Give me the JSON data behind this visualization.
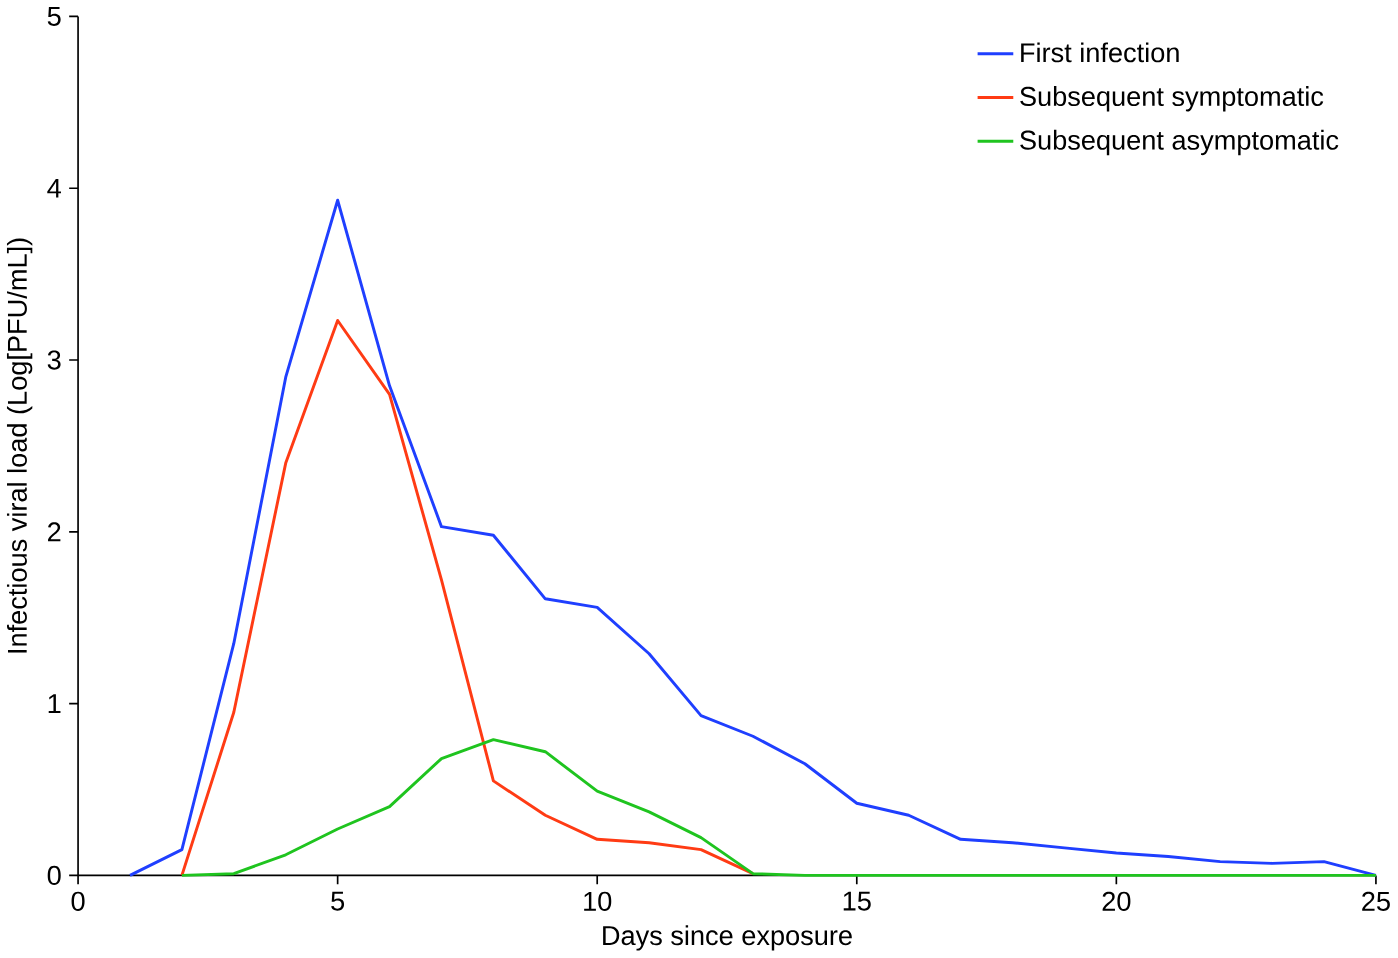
{
  "chart_data": {
    "type": "line",
    "xlabel": "Days since exposure",
    "ylabel": "Infectious viral load (Log[PFU/mL])",
    "xlim": [
      0,
      25
    ],
    "ylim": [
      0,
      5
    ],
    "xticks": [
      0,
      5,
      10,
      15,
      20,
      25
    ],
    "yticks": [
      0,
      1,
      2,
      3,
      4,
      5
    ],
    "grid": false,
    "legend": "top right",
    "marker": "none",
    "series": [
      {
        "name": "First infection",
        "color": "#1f3fff",
        "x": [
          1,
          2,
          3,
          4,
          5,
          6,
          7,
          8,
          9,
          10,
          11,
          12,
          13,
          14,
          15,
          16,
          17,
          18,
          19,
          20,
          21,
          22,
          23,
          24,
          25
        ],
        "values": [
          0,
          0.15,
          1.35,
          2.9,
          3.93,
          2.85,
          2.03,
          1.98,
          1.61,
          1.56,
          1.29,
          0.93,
          0.81,
          0.65,
          0.42,
          0.35,
          0.21,
          0.19,
          0.16,
          0.13,
          0.11,
          0.08,
          0.07,
          0.08,
          0
        ]
      },
      {
        "name": "Subsequent symptomatic",
        "color": "#ff3b14",
        "x": [
          2,
          3,
          4,
          5,
          6,
          7,
          8,
          9,
          10,
          11,
          12,
          13
        ],
        "values": [
          0,
          0.95,
          2.4,
          3.23,
          2.8,
          1.72,
          0.55,
          0.35,
          0.21,
          0.19,
          0.15,
          0.01
        ]
      },
      {
        "name": "Subsequent asymptomatic",
        "color": "#1fc41f",
        "x": [
          2,
          3,
          4,
          5,
          6,
          7,
          8,
          9,
          10,
          11,
          12,
          13,
          14,
          15,
          16,
          17,
          18,
          19,
          20,
          21,
          22,
          23,
          24,
          25
        ],
        "values": [
          0,
          0.01,
          0.12,
          0.27,
          0.4,
          0.68,
          0.79,
          0.72,
          0.49,
          0.37,
          0.22,
          0.01,
          0,
          0,
          0,
          0,
          0,
          0,
          0,
          0,
          0,
          0,
          0,
          0
        ]
      }
    ]
  }
}
